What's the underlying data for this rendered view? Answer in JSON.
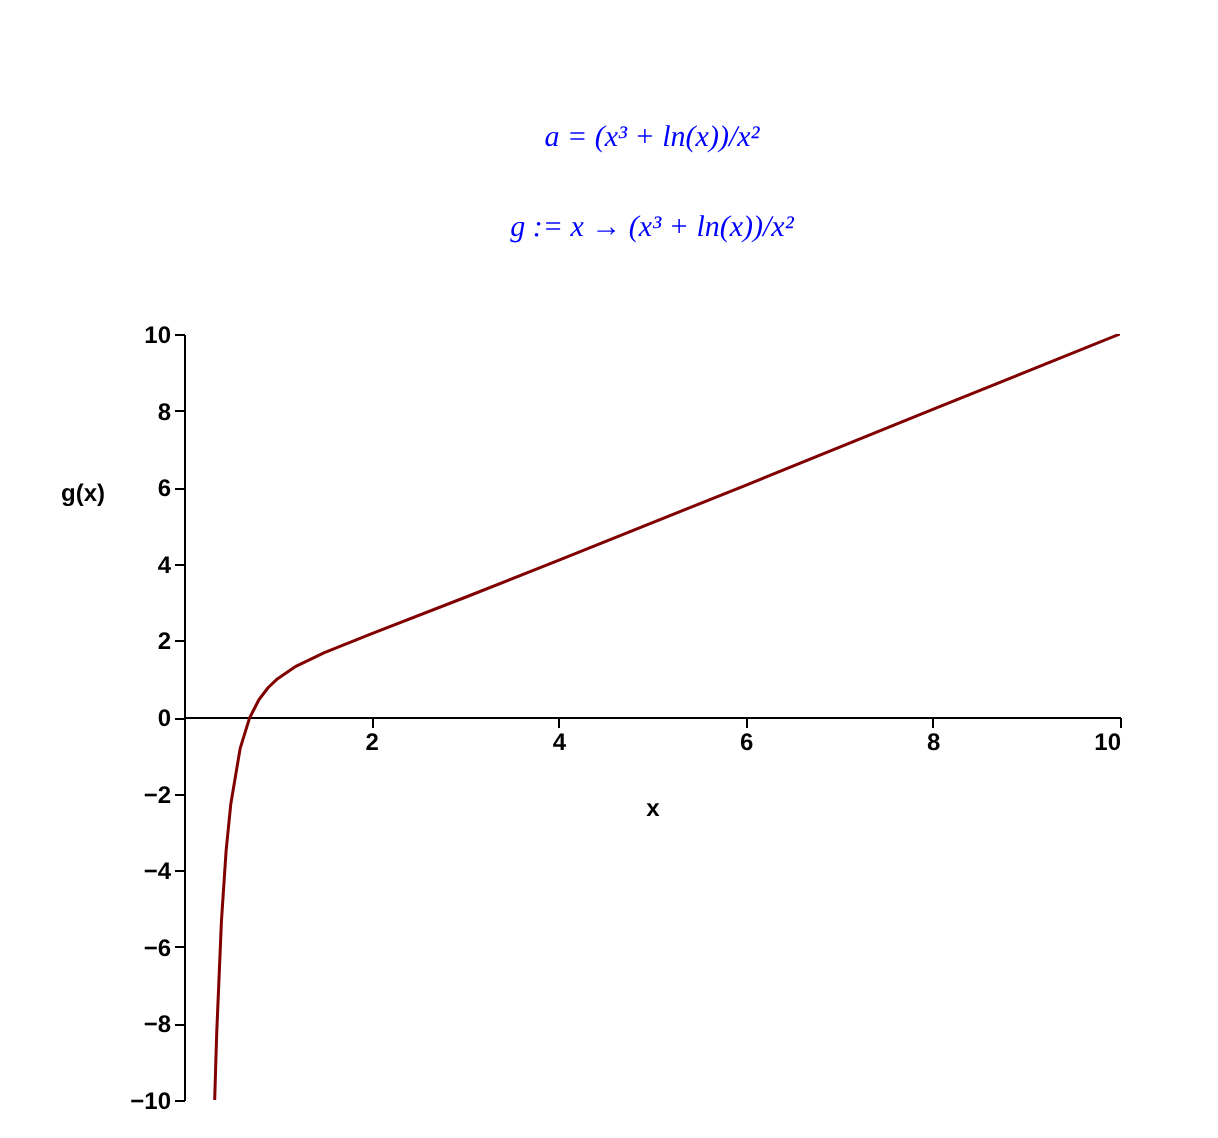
{
  "chart_data": {
    "type": "line",
    "title": "a = (x³ + ln(x))/x²",
    "subtitle": "g := x → (x³ + ln(x))/x²",
    "xlabel": "x",
    "ylabel": "g(x)",
    "x": [
      0.328,
      0.34,
      0.35,
      0.4,
      0.45,
      0.5,
      0.6,
      0.7,
      0.8,
      0.9,
      1,
      1.2,
      1.5,
      2,
      3,
      4,
      6,
      8,
      10
    ],
    "series": [
      {
        "color": "#800000",
        "values": [
          -10.0,
          -8.99,
          -8.22,
          -5.33,
          -3.49,
          -2.27,
          -0.82,
          -0.03,
          0.45,
          0.77,
          1.0,
          1.33,
          1.68,
          2.17,
          3.12,
          4.09,
          6.05,
          8.03,
          10.0
        ]
      }
    ],
    "xlim": [
      0,
      10
    ],
    "xticks": [
      2,
      4,
      6,
      8,
      10
    ],
    "ylim": [
      -10,
      10
    ],
    "yticks": [
      -10,
      -8,
      -6,
      -4,
      -2,
      0,
      2,
      4,
      6,
      8,
      10
    ],
    "grid": false,
    "legend": false,
    "marker": "none",
    "line_style": "solid"
  }
}
